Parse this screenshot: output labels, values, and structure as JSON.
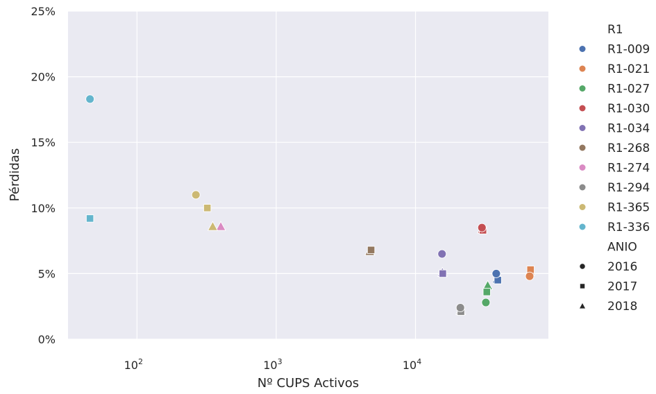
{
  "chart_data": {
    "type": "scatter",
    "xlabel": "Nº CUPS Activos",
    "ylabel": "Pérdidas",
    "xscale": "log",
    "xlim": [
      32,
      90000
    ],
    "ylim": [
      0,
      25
    ],
    "x_ticks": [
      {
        "value": 100,
        "base": "10",
        "exp": "2"
      },
      {
        "value": 1000,
        "base": "10",
        "exp": "3"
      },
      {
        "value": 10000,
        "base": "10",
        "exp": "4"
      }
    ],
    "y_ticks": [
      {
        "value": 0,
        "label": "0%"
      },
      {
        "value": 5,
        "label": "5%"
      },
      {
        "value": 10,
        "label": "10%"
      },
      {
        "value": 15,
        "label": "15%"
      },
      {
        "value": 20,
        "label": "20%"
      },
      {
        "value": 25,
        "label": "25%"
      }
    ],
    "grid": true,
    "background": "#eaeaf2",
    "legend_placement": "right",
    "hue_title": "R1",
    "style_title": "ANIO",
    "hue_entries": [
      {
        "name": "R1-009",
        "color": "#4c72b0"
      },
      {
        "name": "R1-021",
        "color": "#dd8452"
      },
      {
        "name": "R1-027",
        "color": "#55a868"
      },
      {
        "name": "R1-030",
        "color": "#c44e52"
      },
      {
        "name": "R1-034",
        "color": "#8172b3"
      },
      {
        "name": "R1-268",
        "color": "#937860"
      },
      {
        "name": "R1-274",
        "color": "#da8bc3"
      },
      {
        "name": "R1-294",
        "color": "#8c8c8c"
      },
      {
        "name": "R1-365",
        "color": "#ccb974"
      },
      {
        "name": "R1-336",
        "color": "#64b5cd"
      }
    ],
    "style_entries": [
      {
        "name": "2016",
        "marker": "circle"
      },
      {
        "name": "2017",
        "marker": "square"
      },
      {
        "name": "2018",
        "marker": "triangle"
      }
    ],
    "points": [
      {
        "r1": "R1-009",
        "anio": "2016",
        "x": 38000,
        "y": 5.0
      },
      {
        "r1": "R1-009",
        "anio": "2017",
        "x": 39000,
        "y": 4.5
      },
      {
        "r1": "R1-009",
        "anio": "2018",
        "x": 38500,
        "y": 4.6
      },
      {
        "r1": "R1-021",
        "anio": "2016",
        "x": 66000,
        "y": 4.8
      },
      {
        "r1": "R1-021",
        "anio": "2017",
        "x": 67000,
        "y": 5.3
      },
      {
        "r1": "R1-021",
        "anio": "2018",
        "x": 66500,
        "y": 5.2
      },
      {
        "r1": "R1-027",
        "anio": "2016",
        "x": 32000,
        "y": 2.8
      },
      {
        "r1": "R1-027",
        "anio": "2017",
        "x": 32500,
        "y": 3.6
      },
      {
        "r1": "R1-027",
        "anio": "2018",
        "x": 33000,
        "y": 4.1
      },
      {
        "r1": "R1-030",
        "anio": "2016",
        "x": 30000,
        "y": 8.5
      },
      {
        "r1": "R1-030",
        "anio": "2017",
        "x": 30500,
        "y": 8.3
      },
      {
        "r1": "R1-030",
        "anio": "2018",
        "x": 30200,
        "y": 8.4
      },
      {
        "r1": "R1-034",
        "anio": "2016",
        "x": 15500,
        "y": 6.5
      },
      {
        "r1": "R1-034",
        "anio": "2017",
        "x": 15700,
        "y": 5.0
      },
      {
        "r1": "R1-034",
        "anio": "2018",
        "x": 15600,
        "y": 5.1
      },
      {
        "r1": "R1-268",
        "anio": "2017",
        "x": 4800,
        "y": 6.8
      },
      {
        "r1": "R1-268",
        "anio": "2018",
        "x": 4700,
        "y": 6.7
      },
      {
        "r1": "R1-274",
        "anio": "2018",
        "x": 400,
        "y": 8.6
      },
      {
        "r1": "R1-294",
        "anio": "2016",
        "x": 21000,
        "y": 2.4
      },
      {
        "r1": "R1-294",
        "anio": "2017",
        "x": 21200,
        "y": 2.1
      },
      {
        "r1": "R1-294",
        "anio": "2018",
        "x": 21100,
        "y": 2.2
      },
      {
        "r1": "R1-365",
        "anio": "2016",
        "x": 265,
        "y": 11.0
      },
      {
        "r1": "R1-365",
        "anio": "2017",
        "x": 320,
        "y": 10.0
      },
      {
        "r1": "R1-365",
        "anio": "2018",
        "x": 350,
        "y": 8.6
      },
      {
        "r1": "R1-336",
        "anio": "2016",
        "x": 46,
        "y": 18.3
      },
      {
        "r1": "R1-336",
        "anio": "2017",
        "x": 46,
        "y": 9.2
      }
    ]
  }
}
